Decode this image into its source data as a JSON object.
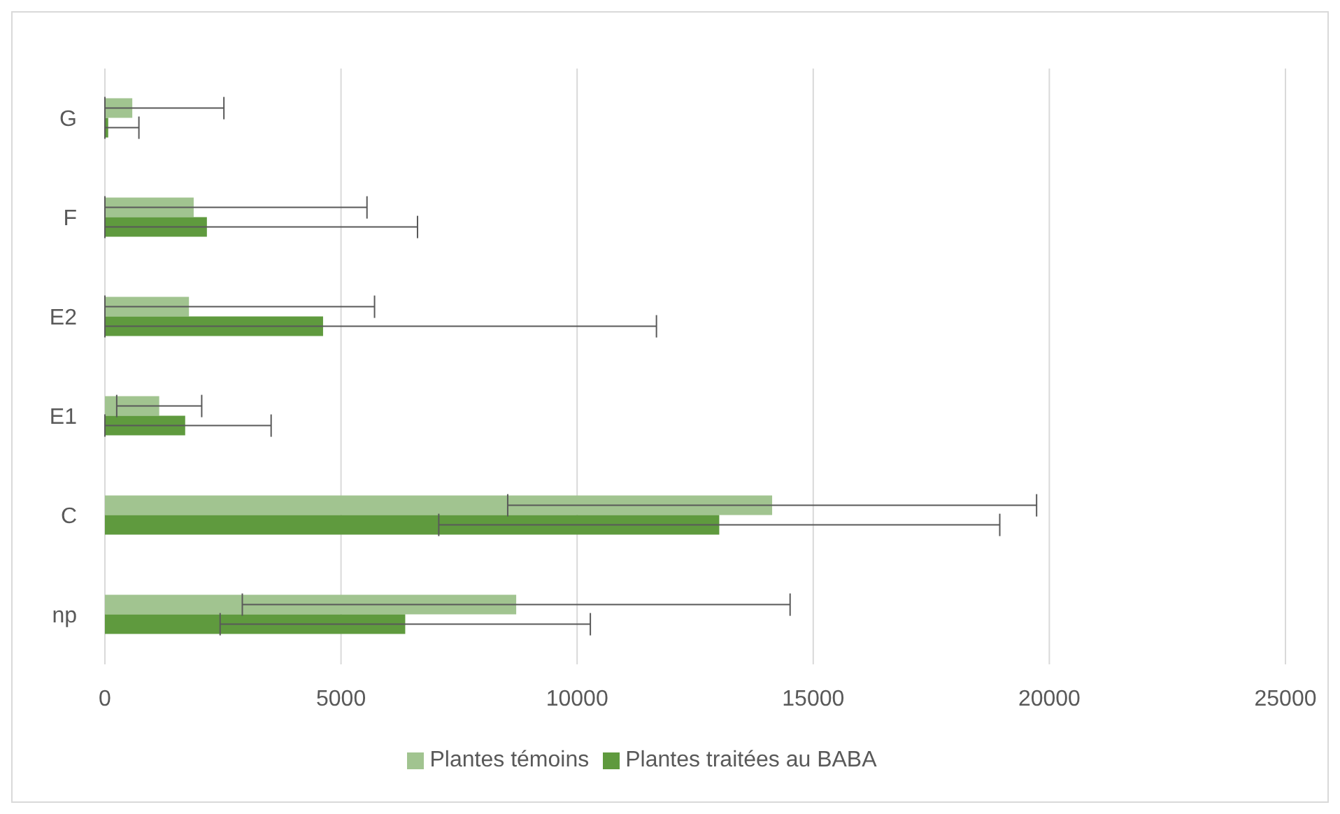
{
  "chart_data": {
    "type": "bar",
    "orientation": "horizontal",
    "categories": [
      "G",
      "F",
      "E2",
      "E1",
      "C",
      "np"
    ],
    "series": [
      {
        "name": "Plantes témoins",
        "color": "#a1c490",
        "values": [
          580,
          1880,
          1780,
          1150,
          14130,
          8710
        ],
        "errors": [
          [
            0,
            2520
          ],
          [
            0,
            5550
          ],
          [
            0,
            5710
          ],
          900,
          5600,
          5800
        ]
      },
      {
        "name": "Plantes traitées au BABA",
        "color": "#5f9a3e",
        "values": [
          70,
          2160,
          4620,
          1700,
          13010,
          6360
        ],
        "errors": [
          [
            0,
            720
          ],
          [
            0,
            6620
          ],
          [
            0,
            11680
          ],
          [
            0,
            3520
          ],
          5940,
          3920
        ]
      }
    ],
    "xlim": [
      0,
      25000
    ],
    "xticks": [
      0,
      5000,
      10000,
      15000,
      20000,
      25000
    ],
    "grid": "x",
    "legend": "bottom"
  }
}
